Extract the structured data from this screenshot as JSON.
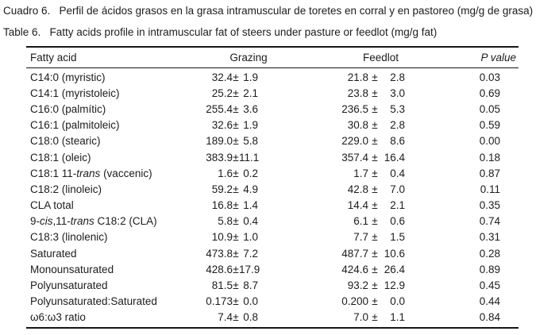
{
  "titles": {
    "spanish": "Cuadro 6.   Perfil de ácidos grasos en la grasa intramuscular de toretes en corral y en pastoreo (mg/g de grasa)",
    "english": "Table 6.   Fatty acids profile in intramuscular fat of steers under pasture or feedlot (mg/g fat)"
  },
  "table": {
    "plus_minus": "±",
    "columns": [
      "Fatty acid",
      "Grazing",
      "Feedlot",
      "P value"
    ],
    "rows": [
      {
        "label": [
          {
            "t": "C14:0 (myristic)"
          }
        ],
        "grazing": {
          "mean": "32.4",
          "sd": "1.9"
        },
        "feedlot": {
          "mean": "21.8",
          "sd": "2.8"
        },
        "p": "0.03"
      },
      {
        "label": [
          {
            "t": "C14:1 (myristoleic)"
          }
        ],
        "grazing": {
          "mean": "25.2",
          "sd": "2.1"
        },
        "feedlot": {
          "mean": "23.8",
          "sd": "3.0"
        },
        "p": "0.69"
      },
      {
        "label": [
          {
            "t": "C16:0 (palmític)"
          }
        ],
        "grazing": {
          "mean": "255.4",
          "sd": "3.6"
        },
        "feedlot": {
          "mean": "236.5",
          "sd": "5.3"
        },
        "p": "0.05"
      },
      {
        "label": [
          {
            "t": "C16:1 (palmitoleic)"
          }
        ],
        "grazing": {
          "mean": "32.6",
          "sd": "1.9"
        },
        "feedlot": {
          "mean": "30.8",
          "sd": "2.8"
        },
        "p": "0.59"
      },
      {
        "label": [
          {
            "t": "C18:0 (stearic)"
          }
        ],
        "grazing": {
          "mean": "189.0",
          "sd": "5.8"
        },
        "feedlot": {
          "mean": "229.0",
          "sd": "8.6"
        },
        "p": "0.00"
      },
      {
        "label": [
          {
            "t": "C18:1 (oleic)"
          }
        ],
        "grazing": {
          "mean": "383.9",
          "sd": "11.1"
        },
        "feedlot": {
          "mean": "357.4",
          "sd": "16.4"
        },
        "p": "0.18"
      },
      {
        "label": [
          {
            "t": "C18:1 11-"
          },
          {
            "t": "trans",
            "i": true
          },
          {
            "t": " (vaccenic)"
          }
        ],
        "grazing": {
          "mean": "1.6",
          "sd": "0.2"
        },
        "feedlot": {
          "mean": "1.7",
          "sd": "0.4"
        },
        "p": "0.87"
      },
      {
        "label": [
          {
            "t": "C18:2 (linoleic)"
          }
        ],
        "grazing": {
          "mean": "59.2",
          "sd": "4.9"
        },
        "feedlot": {
          "mean": "42.8",
          "sd": "7.0"
        },
        "p": "0.11"
      },
      {
        "label": [
          {
            "t": "CLA total"
          }
        ],
        "grazing": {
          "mean": "16.8",
          "sd": "1.4"
        },
        "feedlot": {
          "mean": "14.4",
          "sd": "2.1"
        },
        "p": "0.35"
      },
      {
        "label": [
          {
            "t": "9-"
          },
          {
            "t": "cis",
            "i": true
          },
          {
            "t": ",11-"
          },
          {
            "t": "trans",
            "i": true
          },
          {
            "t": " C18:2 (CLA)"
          }
        ],
        "grazing": {
          "mean": "5.8",
          "sd": "0.4"
        },
        "feedlot": {
          "mean": "6.1",
          "sd": "0.6"
        },
        "p": "0.74"
      },
      {
        "label": [
          {
            "t": "C18:3 (linolenic)"
          }
        ],
        "grazing": {
          "mean": "10.9",
          "sd": "1.0"
        },
        "feedlot": {
          "mean": "7.7",
          "sd": "1.5"
        },
        "p": "0.31"
      },
      {
        "label": [
          {
            "t": "Saturated"
          }
        ],
        "grazing": {
          "mean": "473.8",
          "sd": "7.2"
        },
        "feedlot": {
          "mean": "487.7",
          "sd": "10.6"
        },
        "p": "0.28"
      },
      {
        "label": [
          {
            "t": "Monounsaturated"
          }
        ],
        "grazing": {
          "mean": "428.6",
          "sd": "17.9"
        },
        "feedlot": {
          "mean": "424.6",
          "sd": "26.4"
        },
        "p": "0.89"
      },
      {
        "label": [
          {
            "t": "Polyunsaturated"
          }
        ],
        "grazing": {
          "mean": "81.5",
          "sd": "8.7"
        },
        "feedlot": {
          "mean": "93.2",
          "sd": "12.9"
        },
        "p": "0.45"
      },
      {
        "label": [
          {
            "t": "Polyunsaturated:Saturated"
          }
        ],
        "grazing": {
          "mean": "0.173",
          "sd": "0.0"
        },
        "feedlot": {
          "mean": "0.200",
          "sd": "0.0"
        },
        "p": "0.44"
      },
      {
        "label": [
          {
            "t": "ω6:ω3 ratio"
          }
        ],
        "grazing": {
          "mean": "7.4",
          "sd": "0.8"
        },
        "feedlot": {
          "mean": "7.0",
          "sd": "1.1"
        },
        "p": "0.84"
      }
    ]
  }
}
